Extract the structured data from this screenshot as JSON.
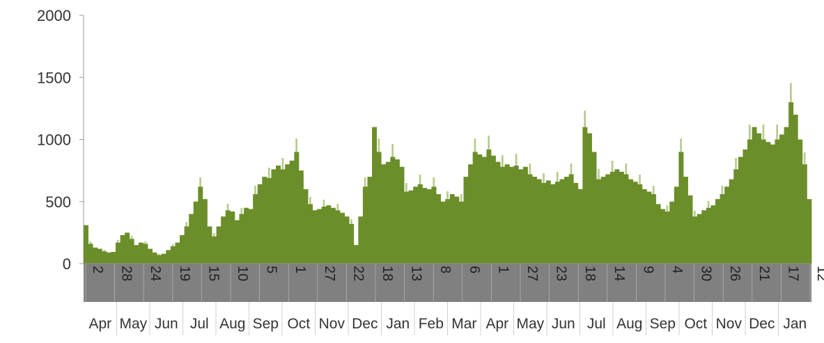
{
  "chart_data": {
    "type": "bar",
    "title": "",
    "xlabel": "",
    "ylabel": "",
    "ylim": [
      0,
      2000
    ],
    "y_ticks": [
      0,
      500,
      1000,
      1500,
      2000
    ],
    "grid": false,
    "legend": "none",
    "colors": {
      "bar": "#6b8e2a",
      "bar_highlight": "#b5c98a",
      "date_band": "#808080",
      "axis": "#999999"
    },
    "date_tick_labels": [
      "2",
      "28",
      "24",
      "19",
      "15",
      "10",
      "5",
      "1",
      "27",
      "22",
      "18",
      "13",
      "8",
      "6",
      "1",
      "27",
      "23",
      "18",
      "14",
      "9",
      "4",
      "30",
      "26",
      "21",
      "17",
      "12"
    ],
    "month_labels": [
      "Apr",
      "May",
      "Jun",
      "Jul",
      "Aug",
      "Sep",
      "Oct",
      "Nov",
      "Dec",
      "Jan",
      "Feb",
      "Mar",
      "Apr",
      "May",
      "Jun",
      "Jul",
      "Aug",
      "Sep",
      "Oct",
      "Nov",
      "Dec",
      "Jan"
    ],
    "weekly_values": [
      310,
      160,
      130,
      120,
      100,
      90,
      95,
      170,
      230,
      250,
      200,
      150,
      170,
      160,
      120,
      90,
      70,
      80,
      110,
      140,
      170,
      230,
      300,
      400,
      500,
      620,
      520,
      300,
      220,
      300,
      380,
      430,
      420,
      350,
      400,
      450,
      440,
      560,
      640,
      700,
      690,
      760,
      790,
      760,
      800,
      830,
      900,
      750,
      600,
      480,
      430,
      440,
      460,
      470,
      450,
      430,
      410,
      380,
      320,
      150,
      380,
      620,
      700,
      1100,
      900,
      800,
      820,
      860,
      840,
      780,
      580,
      590,
      620,
      640,
      610,
      600,
      620,
      560,
      500,
      520,
      560,
      540,
      500,
      700,
      800,
      900,
      880,
      860,
      920,
      870,
      820,
      780,
      800,
      780,
      790,
      760,
      780,
      720,
      700,
      680,
      650,
      670,
      640,
      660,
      680,
      700,
      720,
      650,
      600,
      1100,
      1050,
      900,
      680,
      700,
      720,
      740,
      760,
      740,
      720,
      680,
      660,
      640,
      600,
      580,
      560,
      480,
      440,
      420,
      500,
      620,
      900,
      700,
      550,
      380,
      400,
      430,
      450,
      470,
      520,
      560,
      620,
      680,
      760,
      860,
      920,
      1000,
      1100,
      1050,
      1000,
      980,
      960,
      1000,
      1040,
      1100,
      1300,
      1200,
      1000,
      800,
      520
    ]
  }
}
